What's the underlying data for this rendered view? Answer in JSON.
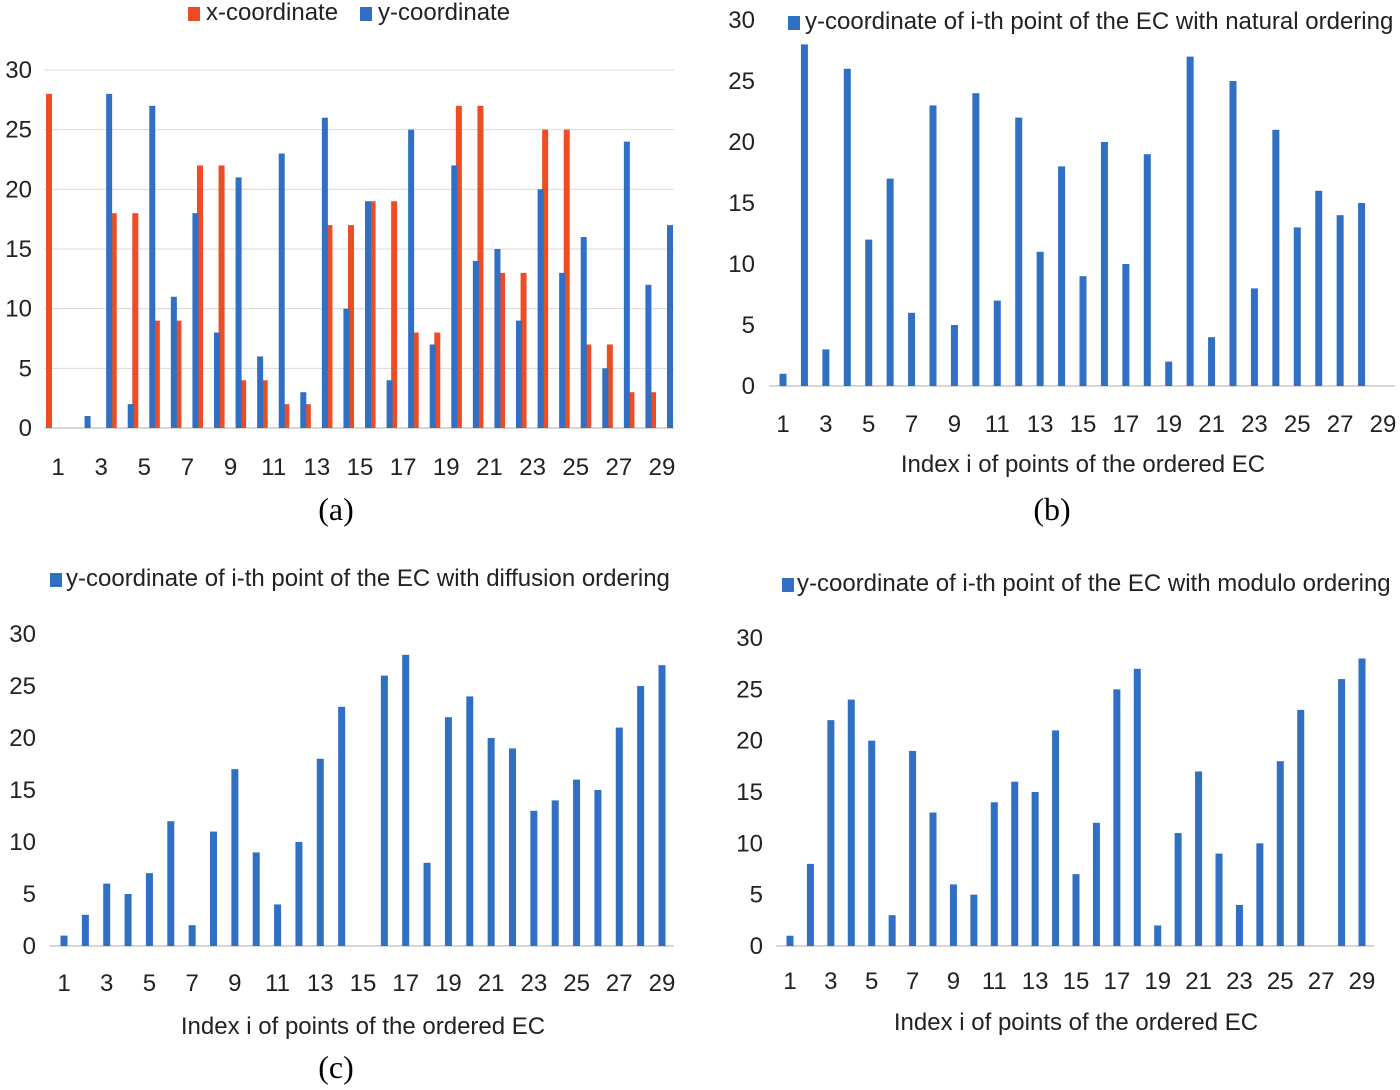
{
  "colors": {
    "x_series": "#ee4c24",
    "y_series": "#2f6fc4"
  },
  "chart_data": [
    {
      "type": "bar",
      "panel_label": "(a)",
      "title": "",
      "xlabel": "",
      "ylabel": "",
      "ylim": [
        0,
        30
      ],
      "yticks": [
        0,
        5,
        10,
        15,
        20,
        25,
        30
      ],
      "grid": true,
      "legend_position": "top",
      "categories": [
        1,
        2,
        3,
        4,
        5,
        6,
        7,
        8,
        9,
        10,
        11,
        12,
        13,
        14,
        15,
        16,
        17,
        18,
        19,
        20,
        21,
        22,
        23,
        24,
        25,
        26,
        27,
        28,
        29
      ],
      "xticks": [
        1,
        3,
        5,
        7,
        9,
        11,
        13,
        15,
        17,
        19,
        21,
        23,
        25,
        27,
        29
      ],
      "series": [
        {
          "name": "x-coordinate",
          "color_key": "x_series",
          "values": [
            28,
            0,
            0,
            18,
            18,
            9,
            9,
            22,
            22,
            4,
            4,
            2,
            2,
            17,
            17,
            19,
            19,
            8,
            8,
            27,
            27,
            13,
            13,
            25,
            25,
            7,
            7,
            3,
            3
          ]
        },
        {
          "name": "y-coordinate",
          "color_key": "y_series",
          "values": [
            0,
            1,
            28,
            2,
            27,
            11,
            18,
            8,
            21,
            6,
            23,
            3,
            26,
            10,
            19,
            4,
            25,
            7,
            22,
            14,
            15,
            9,
            20,
            13,
            16,
            5,
            24,
            12,
            17
          ]
        }
      ]
    },
    {
      "type": "bar",
      "panel_label": "(b)",
      "title": "",
      "xlabel": "Index i of points of the ordered EC",
      "ylabel": "",
      "ylim": [
        0,
        30
      ],
      "yticks": [
        0,
        5,
        10,
        15,
        20,
        25,
        30
      ],
      "grid": false,
      "legend_position": "top",
      "categories": [
        1,
        2,
        3,
        4,
        5,
        6,
        7,
        8,
        9,
        10,
        11,
        12,
        13,
        14,
        15,
        16,
        17,
        18,
        19,
        20,
        21,
        22,
        23,
        24,
        25,
        26,
        27,
        28,
        29
      ],
      "xticks": [
        1,
        3,
        5,
        7,
        9,
        11,
        13,
        15,
        17,
        19,
        21,
        23,
        25,
        27,
        29
      ],
      "series": [
        {
          "name": "y-coordinate of i-th point of the EC with natural ordering",
          "color_key": "y_series",
          "values": [
            1,
            28,
            3,
            26,
            12,
            17,
            6,
            23,
            5,
            24,
            7,
            22,
            11,
            18,
            9,
            20,
            10,
            19,
            2,
            27,
            4,
            25,
            8,
            21,
            13,
            16,
            14,
            15,
            null
          ]
        }
      ]
    },
    {
      "type": "bar",
      "panel_label": "(c)",
      "title": "",
      "xlabel": "Index i of points of the ordered EC",
      "ylabel": "",
      "ylim": [
        0,
        30
      ],
      "yticks": [
        0,
        5,
        10,
        15,
        20,
        25,
        30
      ],
      "grid": false,
      "legend_position": "top",
      "categories": [
        1,
        2,
        3,
        4,
        5,
        6,
        7,
        8,
        9,
        10,
        11,
        12,
        13,
        14,
        15,
        16,
        17,
        18,
        19,
        20,
        21,
        22,
        23,
        24,
        25,
        26,
        27,
        28,
        29
      ],
      "xticks": [
        1,
        3,
        5,
        7,
        9,
        11,
        13,
        15,
        17,
        19,
        21,
        23,
        25,
        27,
        29
      ],
      "series": [
        {
          "name": "y-coordinate of i-th point of the EC with diffusion ordering",
          "color_key": "y_series",
          "values": [
            1,
            3,
            6,
            5,
            7,
            12,
            2,
            11,
            17,
            9,
            4,
            10,
            18,
            23,
            0,
            26,
            28,
            8,
            22,
            24,
            20,
            19,
            13,
            14,
            16,
            15,
            21,
            25,
            27
          ]
        }
      ]
    },
    {
      "type": "bar",
      "panel_label": "",
      "title": "",
      "xlabel": "Index i of points of the ordered EC",
      "ylabel": "",
      "ylim": [
        0,
        30
      ],
      "yticks": [
        0,
        5,
        10,
        15,
        20,
        25,
        30
      ],
      "grid": false,
      "legend_position": "top",
      "categories": [
        1,
        2,
        3,
        4,
        5,
        6,
        7,
        8,
        9,
        10,
        11,
        12,
        13,
        14,
        15,
        16,
        17,
        18,
        19,
        20,
        21,
        22,
        23,
        24,
        25,
        26,
        27,
        28,
        29
      ],
      "xticks": [
        1,
        3,
        5,
        7,
        9,
        11,
        13,
        15,
        17,
        19,
        21,
        23,
        25,
        27,
        29
      ],
      "series": [
        {
          "name": "y-coordinate of i-th point of the EC with modulo ordering",
          "color_key": "y_series",
          "values": [
            1,
            8,
            22,
            24,
            20,
            3,
            19,
            13,
            6,
            5,
            14,
            16,
            15,
            21,
            7,
            12,
            25,
            27,
            2,
            11,
            17,
            9,
            4,
            10,
            18,
            23,
            0,
            26,
            28
          ]
        }
      ]
    }
  ]
}
